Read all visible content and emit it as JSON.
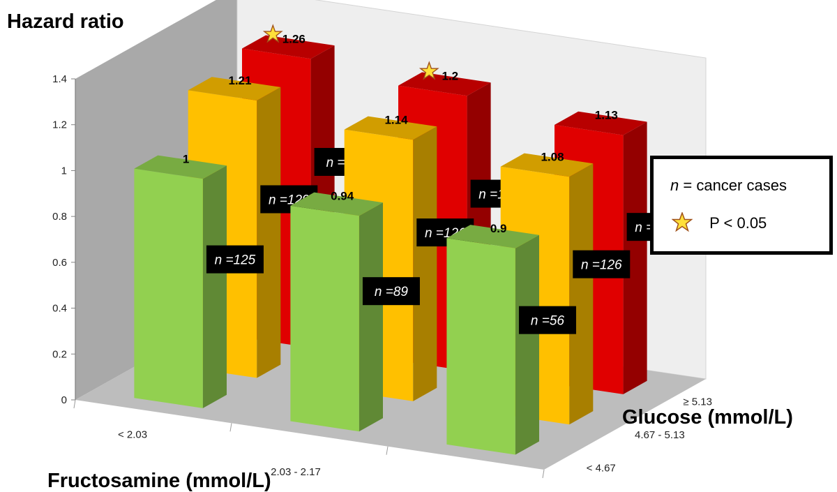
{
  "chart_data": {
    "type": "bar",
    "title": "",
    "ylabel": "Hazard ratio",
    "xlabel": "Fructosamine (mmol/L)",
    "zlabel": "Glucose (mmol/L)",
    "ylim": [
      0,
      1.4
    ],
    "yticks": [
      "0",
      "0.2",
      "0.4",
      "0.6",
      "0.8",
      "1",
      "1.2",
      "1.4"
    ],
    "categories": [
      "< 2.03",
      "2.03 - 2.17",
      "≥ 2.17"
    ],
    "series": [
      {
        "name": "< 4.67",
        "color": "#92d050",
        "values": [
          1,
          0.94,
          0.9
        ],
        "value_labels": [
          "1",
          "0.94",
          "0.9"
        ],
        "cases": [
          "n =125",
          "n =89",
          "n =56"
        ],
        "significant": [
          false,
          false,
          false
        ]
      },
      {
        "name": "4.67 - 5.13",
        "color": "#ffc000",
        "values": [
          1.21,
          1.14,
          1.08
        ],
        "value_labels": [
          "1.21",
          "1.14",
          "1.08"
        ],
        "cases": [
          "n =129",
          "n =126",
          "n =126"
        ],
        "significant": [
          false,
          false,
          false
        ]
      },
      {
        "name": "≥ 5.13",
        "color": "#e00000",
        "values": [
          1.26,
          1.2,
          1.13
        ],
        "value_labels": [
          "1.26",
          "1.2",
          "1.13"
        ],
        "cases": [
          "n =88",
          "n =126",
          "n =200"
        ],
        "significant": [
          true,
          true,
          false
        ]
      }
    ],
    "legend": {
      "position": "right",
      "items": [
        {
          "symbol": "n",
          "text": "= cancer cases"
        },
        {
          "symbol": "star",
          "text": "P < 0.05"
        }
      ]
    },
    "grid": false
  }
}
